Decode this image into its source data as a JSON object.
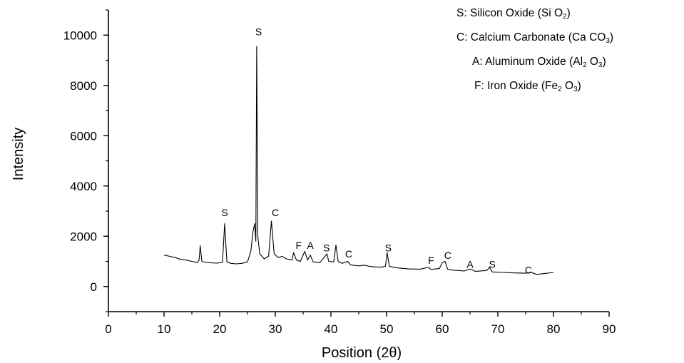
{
  "chart_data": {
    "type": "line",
    "title": "",
    "xlabel": "Position (2θ)",
    "ylabel": "Intensity",
    "xlim": [
      0,
      90
    ],
    "ylim": [
      -1000,
      11000
    ],
    "xticks": [
      0,
      10,
      20,
      30,
      40,
      50,
      60,
      70,
      80,
      90
    ],
    "yticks": [
      0,
      2000,
      4000,
      6000,
      8000,
      10000
    ],
    "grid": false,
    "legend_position": "top-right",
    "series": [
      {
        "color": "#000000",
        "points": [
          [
            10.0,
            1250
          ],
          [
            11.0,
            1200
          ],
          [
            12.0,
            1150
          ],
          [
            13.0,
            1080
          ],
          [
            14.0,
            1050
          ],
          [
            15.0,
            1000
          ],
          [
            16.0,
            960
          ],
          [
            16.3,
            1050
          ],
          [
            16.5,
            1620
          ],
          [
            16.8,
            1000
          ],
          [
            17.5,
            960
          ],
          [
            18.5,
            940
          ],
          [
            19.5,
            930
          ],
          [
            20.5,
            960
          ],
          [
            20.9,
            2500
          ],
          [
            21.3,
            980
          ],
          [
            22.0,
            920
          ],
          [
            23.0,
            900
          ],
          [
            24.0,
            920
          ],
          [
            25.0,
            980
          ],
          [
            25.6,
            1400
          ],
          [
            26.0,
            2200
          ],
          [
            26.3,
            2500
          ],
          [
            26.5,
            1800
          ],
          [
            26.65,
            9550
          ],
          [
            26.85,
            2000
          ],
          [
            27.2,
            1300
          ],
          [
            28.0,
            1100
          ],
          [
            28.8,
            1200
          ],
          [
            29.3,
            2600
          ],
          [
            29.8,
            1300
          ],
          [
            30.5,
            1150
          ],
          [
            31.2,
            1200
          ],
          [
            32.0,
            1100
          ],
          [
            33.0,
            1050
          ],
          [
            33.3,
            1350
          ],
          [
            33.8,
            1050
          ],
          [
            34.5,
            1000
          ],
          [
            35.3,
            1400
          ],
          [
            35.8,
            1050
          ],
          [
            36.3,
            1250
          ],
          [
            36.8,
            980
          ],
          [
            38.0,
            950
          ],
          [
            39.3,
            1300
          ],
          [
            39.6,
            1000
          ],
          [
            40.5,
            980
          ],
          [
            40.9,
            1650
          ],
          [
            41.3,
            1000
          ],
          [
            42.0,
            920
          ],
          [
            43.0,
            1000
          ],
          [
            43.5,
            860
          ],
          [
            45.0,
            820
          ],
          [
            46.0,
            850
          ],
          [
            47.0,
            800
          ],
          [
            48.0,
            780
          ],
          [
            49.0,
            770
          ],
          [
            49.8,
            800
          ],
          [
            50.1,
            1350
          ],
          [
            50.5,
            800
          ],
          [
            52.0,
            740
          ],
          [
            54.0,
            700
          ],
          [
            56.0,
            690
          ],
          [
            57.5,
            760
          ],
          [
            58.0,
            680
          ],
          [
            59.5,
            720
          ],
          [
            60.0,
            940
          ],
          [
            60.5,
            1000
          ],
          [
            61.0,
            680
          ],
          [
            62.0,
            650
          ],
          [
            64.0,
            620
          ],
          [
            65.0,
            700
          ],
          [
            66.0,
            600
          ],
          [
            68.0,
            640
          ],
          [
            68.5,
            760
          ],
          [
            69.0,
            580
          ],
          [
            71.0,
            560
          ],
          [
            73.0,
            540
          ],
          [
            75.0,
            530
          ],
          [
            76.0,
            560
          ],
          [
            77.0,
            480
          ],
          [
            78.5,
            520
          ],
          [
            80.0,
            560
          ]
        ]
      }
    ],
    "peak_labels": [
      {
        "text": "S",
        "x": 20.9,
        "y": 2800
      },
      {
        "text": "S",
        "x": 27.0,
        "y": 10000
      },
      {
        "text": "C",
        "x": 30.0,
        "y": 2800
      },
      {
        "text": "F",
        "x": 34.2,
        "y": 1500
      },
      {
        "text": "A",
        "x": 36.3,
        "y": 1500
      },
      {
        "text": "S",
        "x": 39.2,
        "y": 1400
      },
      {
        "text": "C",
        "x": 43.2,
        "y": 1150
      },
      {
        "text": "S",
        "x": 50.3,
        "y": 1400
      },
      {
        "text": "F",
        "x": 58.0,
        "y": 900
      },
      {
        "text": "C",
        "x": 61.0,
        "y": 1100
      },
      {
        "text": "A",
        "x": 65.0,
        "y": 750
      },
      {
        "text": "S",
        "x": 69.0,
        "y": 750
      },
      {
        "text": "C",
        "x": 75.5,
        "y": 520
      }
    ],
    "legend": [
      {
        "prefix": "S: Silicon Oxide (Si O",
        "sub": "2",
        "suffix": ")"
      },
      {
        "prefix": "C: Calcium Carbonate (Ca CO",
        "sub": "3",
        "suffix": ")"
      },
      {
        "prefix": "A: Aluminum Oxide (Al",
        "sub": "2",
        "mid": " O",
        "sub2": "3",
        "suffix": ")"
      },
      {
        "prefix": "F: Iron Oxide (Fe",
        "sub": "2",
        "mid": " O",
        "sub2": "3",
        "suffix": ")"
      }
    ]
  }
}
